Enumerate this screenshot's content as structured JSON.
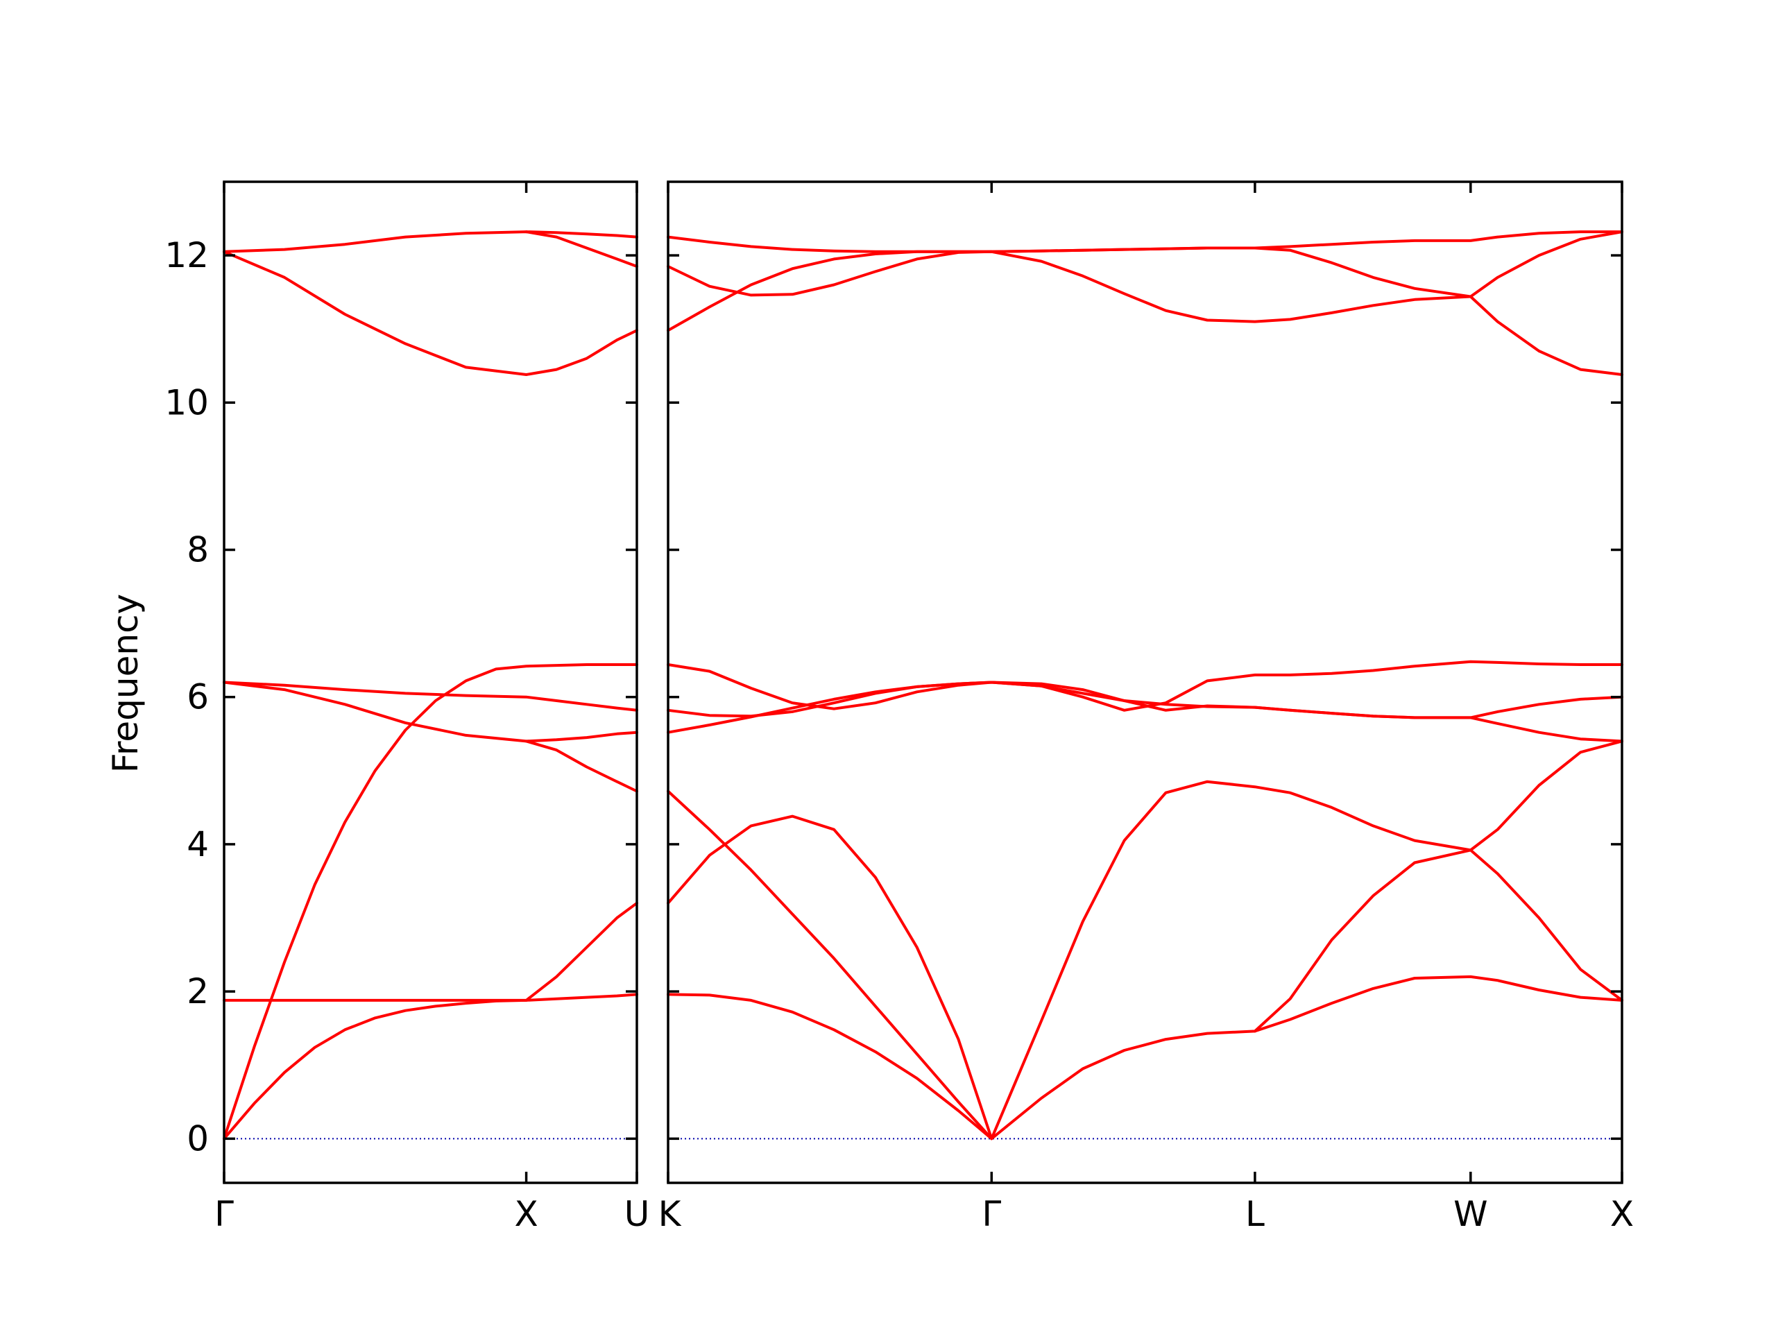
{
  "chart_data": {
    "type": "line",
    "title": "",
    "ylabel": "Frequency",
    "xlabel": "",
    "ylim": [
      -0.6,
      13.0
    ],
    "yticks": [
      0,
      2,
      4,
      6,
      8,
      10,
      12
    ],
    "grid": false,
    "legend": "none",
    "band_color": "#ff0000",
    "zero_line_color": "#0000aa",
    "panels": [
      {
        "name": "left",
        "xlim": [
          0,
          1.366
        ],
        "ticks": [
          {
            "x": 0,
            "label": "Γ"
          },
          {
            "x": 1.0,
            "label": "X"
          },
          {
            "x": 1.366,
            "label": "U"
          }
        ],
        "series": [
          {
            "x": [
              0,
              0.1,
              0.2,
              0.3,
              0.4,
              0.5,
              0.6,
              0.7,
              0.8,
              0.9,
              1.0,
              1.1,
              1.2,
              1.3,
              1.366
            ],
            "values": [
              0,
              0.48,
              0.9,
              1.24,
              1.48,
              1.64,
              1.74,
              1.8,
              1.84,
              1.87,
              1.88,
              1.9,
              1.92,
              1.94,
              1.96
            ]
          },
          {
            "x": [
              0,
              0.1,
              0.2,
              0.3,
              0.4,
              0.5,
              0.6,
              0.7,
              0.8,
              0.9,
              1.0,
              1.1,
              1.2,
              1.3,
              1.366
            ],
            "values": [
              0,
              1.25,
              2.4,
              3.45,
              4.3,
              5.0,
              5.55,
              5.95,
              6.22,
              6.38,
              6.42,
              6.43,
              6.44,
              6.44,
              6.44
            ]
          },
          {
            "x": [
              0,
              1.0,
              1.1,
              1.2,
              1.3,
              1.366
            ],
            "values": [
              1.88,
              1.88,
              2.2,
              2.6,
              3.0,
              3.2
            ]
          },
          {
            "x": [
              0,
              0.2,
              0.4,
              0.6,
              0.8,
              1.0,
              1.1,
              1.2,
              1.3,
              1.366
            ],
            "values": [
              6.2,
              6.1,
              5.9,
              5.65,
              5.48,
              5.4,
              5.28,
              5.05,
              4.85,
              4.72
            ]
          },
          {
            "x": [
              0,
              0.2,
              0.4,
              0.6,
              0.8,
              1.0,
              1.1,
              1.2,
              1.3,
              1.366
            ],
            "values": [
              6.2,
              6.16,
              6.1,
              6.05,
              6.02,
              6.0,
              5.95,
              5.9,
              5.85,
              5.82
            ]
          },
          {
            "x": [
              1.0,
              1.1,
              1.2,
              1.3,
              1.366
            ],
            "values": [
              5.4,
              5.42,
              5.45,
              5.5,
              5.52
            ]
          },
          {
            "x": [
              0,
              0.2,
              0.4,
              0.6,
              0.8,
              1.0,
              1.1,
              1.2,
              1.3,
              1.366
            ],
            "values": [
              12.05,
              11.7,
              11.2,
              10.8,
              10.48,
              10.38,
              10.45,
              10.6,
              10.85,
              10.98
            ]
          },
          {
            "x": [
              0,
              0.2,
              0.4,
              0.6,
              0.8,
              1.0,
              1.1,
              1.2,
              1.3,
              1.366
            ],
            "values": [
              12.05,
              12.08,
              12.15,
              12.25,
              12.3,
              12.32,
              12.31,
              12.29,
              12.27,
              12.25
            ]
          },
          {
            "x": [
              1.0,
              1.1,
              1.2,
              1.3,
              1.366
            ],
            "values": [
              12.32,
              12.25,
              12.1,
              11.95,
              11.85
            ]
          }
        ]
      },
      {
        "name": "right",
        "xlim": [
          0,
          4.6
        ],
        "ticks": [
          {
            "x": 0,
            "label": "K"
          },
          {
            "x": 1.56,
            "label": "Γ"
          },
          {
            "x": 2.83,
            "label": "L"
          },
          {
            "x": 3.87,
            "label": "W"
          },
          {
            "x": 4.6,
            "label": "X"
          }
        ],
        "series": [
          {
            "x": [
              0,
              0.2,
              0.4,
              0.6,
              0.8,
              1.0,
              1.2,
              1.4,
              1.56,
              1.8,
              2.0,
              2.2,
              2.4,
              2.6,
              2.83,
              3.0,
              3.2,
              3.4,
              3.6,
              3.87,
              4.0,
              4.2,
              4.4,
              4.6
            ],
            "values": [
              1.96,
              1.95,
              1.88,
              1.72,
              1.48,
              1.18,
              0.82,
              0.38,
              0,
              0.55,
              0.95,
              1.2,
              1.35,
              1.43,
              1.46,
              1.62,
              1.84,
              2.04,
              2.18,
              2.2,
              2.15,
              2.02,
              1.92,
              1.88
            ]
          },
          {
            "x": [
              0,
              0.2,
              0.4,
              0.6,
              0.8,
              1.0,
              1.2,
              1.4,
              1.56,
              1.8,
              2.0,
              2.2,
              2.4,
              2.6,
              2.83,
              3.0,
              3.2,
              3.4,
              3.6,
              3.87,
              4.0,
              4.2,
              4.4,
              4.6
            ],
            "values": [
              3.2,
              3.85,
              4.25,
              4.38,
              4.2,
              3.55,
              2.6,
              1.35,
              0,
              1.6,
              2.95,
              4.05,
              4.7,
              4.85,
              4.78,
              4.7,
              4.5,
              4.25,
              4.05,
              3.92,
              3.6,
              3.0,
              2.3,
              1.88
            ]
          },
          {
            "x": [
              0,
              0.2,
              0.4,
              0.6,
              0.8,
              1.0,
              1.2,
              1.4,
              1.56
            ],
            "values": [
              4.72,
              4.2,
              3.65,
              3.05,
              2.45,
              1.8,
              1.15,
              0.5,
              0
            ]
          },
          {
            "x": [
              2.83,
              3.0,
              3.2,
              3.4,
              3.6,
              3.87,
              4.0,
              4.2,
              4.4,
              4.6
            ],
            "values": [
              1.46,
              1.9,
              2.7,
              3.3,
              3.75,
              3.92,
              4.2,
              4.8,
              5.25,
              5.4
            ]
          },
          {
            "x": [
              0,
              0.2,
              0.4,
              0.6,
              0.8,
              1.0,
              1.2,
              1.4,
              1.56,
              1.8,
              2.0,
              2.2,
              2.4,
              2.6,
              2.83,
              3.0,
              3.2,
              3.4,
              3.6,
              3.87,
              4.0,
              4.2,
              4.4,
              4.6
            ],
            "values": [
              5.52,
              5.62,
              5.73,
              5.85,
              5.97,
              6.07,
              6.14,
              6.18,
              6.2,
              6.15,
              6.05,
              5.95,
              5.9,
              5.87,
              5.86,
              5.82,
              5.78,
              5.74,
              5.72,
              5.72,
              5.64,
              5.52,
              5.43,
              5.4
            ]
          },
          {
            "x": [
              0,
              0.2,
              0.4,
              0.6,
              0.8,
              1.0,
              1.2,
              1.4,
              1.56,
              1.8,
              2.0,
              2.2,
              2.4,
              2.6,
              2.83,
              3.0,
              3.2,
              3.4,
              3.6,
              3.87,
              4.0,
              4.2,
              4.4,
              4.6
            ],
            "values": [
              5.82,
              5.75,
              5.74,
              5.8,
              5.92,
              6.05,
              6.14,
              6.18,
              6.2,
              6.18,
              6.1,
              5.95,
              5.82,
              5.88,
              5.86,
              5.82,
              5.78,
              5.74,
              5.72,
              5.72,
              5.8,
              5.9,
              5.97,
              6.0
            ]
          },
          {
            "x": [
              0,
              0.2,
              0.4,
              0.6,
              0.8,
              1.0,
              1.2,
              1.4,
              1.56,
              1.8,
              2.0,
              2.2,
              2.4,
              2.6,
              2.83,
              3.0,
              3.2,
              3.4,
              3.6,
              3.87,
              4.0,
              4.2,
              4.4,
              4.6
            ],
            "values": [
              6.44,
              6.35,
              6.12,
              5.92,
              5.84,
              5.92,
              6.07,
              6.16,
              6.2,
              6.15,
              6.0,
              5.82,
              5.92,
              6.22,
              6.3,
              6.3,
              6.32,
              6.36,
              6.42,
              6.48,
              6.47,
              6.45,
              6.44,
              6.44
            ]
          },
          {
            "x": [
              0,
              0.2,
              0.4,
              0.6,
              0.8,
              1.0,
              1.2,
              1.4,
              1.56,
              1.8,
              2.0,
              2.2,
              2.4,
              2.6,
              2.83,
              3.0,
              3.2,
              3.4,
              3.6,
              3.87,
              4.0,
              4.2,
              4.4,
              4.6
            ],
            "values": [
              10.98,
              11.3,
              11.6,
              11.82,
              11.95,
              12.02,
              12.05,
              12.05,
              12.05,
              12.06,
              12.07,
              12.08,
              12.09,
              12.1,
              12.1,
              12.07,
              11.9,
              11.7,
              11.55,
              11.44,
              11.1,
              10.7,
              10.45,
              10.38
            ]
          },
          {
            "x": [
              0,
              0.2,
              0.4,
              0.6,
              0.8,
              1.0,
              1.2,
              1.4,
              1.56,
              1.8,
              2.0,
              2.2,
              2.4,
              2.6,
              2.83,
              3.0,
              3.2,
              3.4,
              3.6,
              3.87,
              4.0,
              4.2,
              4.4,
              4.6
            ],
            "values": [
              11.85,
              11.58,
              11.46,
              11.47,
              11.6,
              11.78,
              11.95,
              12.04,
              12.05,
              11.92,
              11.72,
              11.48,
              11.25,
              11.12,
              11.1,
              11.13,
              11.22,
              11.32,
              11.4,
              11.44,
              11.7,
              12.0,
              12.22,
              12.32
            ]
          },
          {
            "x": [
              0,
              0.2,
              0.4,
              0.6,
              0.8,
              1.0,
              1.2,
              1.4,
              1.56,
              1.8,
              2.0,
              2.2,
              2.4,
              2.6,
              2.83,
              3.0,
              3.2,
              3.4,
              3.6,
              3.87,
              4.0,
              4.2,
              4.4,
              4.6
            ],
            "values": [
              12.25,
              12.18,
              12.12,
              12.08,
              12.06,
              12.05,
              12.05,
              12.05,
              12.05,
              12.06,
              12.07,
              12.08,
              12.09,
              12.1,
              12.1,
              12.12,
              12.15,
              12.18,
              12.2,
              12.2,
              12.25,
              12.3,
              12.32,
              12.32
            ]
          }
        ]
      }
    ]
  }
}
